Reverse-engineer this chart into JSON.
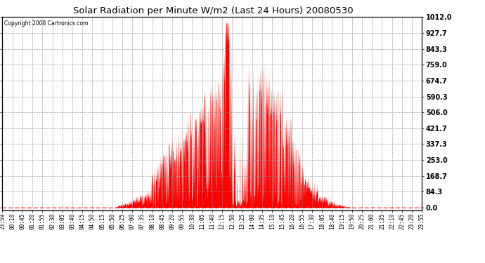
{
  "title": "Solar Radiation per Minute W/m2 (Last 24 Hours) 20080530",
  "copyright_text": "Copyright 2008 Cartronics.com",
  "fill_color": "#ff0000",
  "line_color": "#ff0000",
  "background_color": "#ffffff",
  "grid_color": "#888888",
  "yticks": [
    0.0,
    84.3,
    168.7,
    253.0,
    337.3,
    421.7,
    506.0,
    590.3,
    674.7,
    759.0,
    843.3,
    927.7,
    1012.0
  ],
  "ylim": [
    -15,
    1012.0
  ],
  "xtick_labels": [
    "23:59",
    "00:10",
    "00:45",
    "01:20",
    "01:55",
    "02:30",
    "03:05",
    "03:40",
    "04:15",
    "04:50",
    "05:15",
    "05:50",
    "06:25",
    "07:00",
    "07:35",
    "08:10",
    "08:45",
    "09:20",
    "09:55",
    "10:30",
    "11:05",
    "11:40",
    "12:15",
    "12:50",
    "13:25",
    "14:00",
    "14:35",
    "15:10",
    "15:45",
    "16:20",
    "16:55",
    "17:30",
    "18:05",
    "18:40",
    "19:15",
    "19:50",
    "20:25",
    "21:00",
    "21:35",
    "22:10",
    "22:45",
    "23:20",
    "23:55"
  ],
  "axleft": 0.005,
  "axbottom": 0.2,
  "axwidth": 0.865,
  "axheight": 0.735
}
